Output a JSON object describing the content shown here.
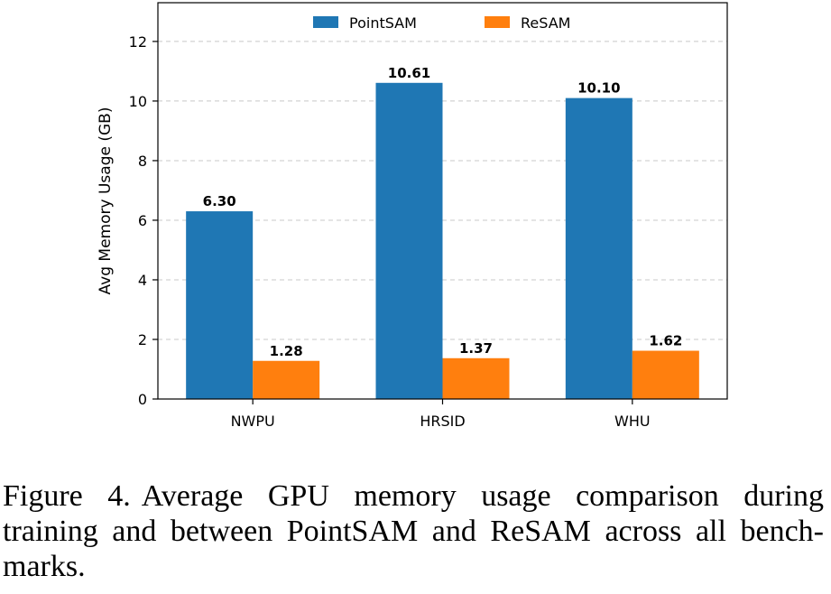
{
  "chart_data": {
    "type": "bar",
    "categories": [
      "NWPU",
      "HRSID",
      "WHU"
    ],
    "series": [
      {
        "name": "PointSAM",
        "values": [
          6.3,
          10.61,
          10.1
        ],
        "value_labels": [
          "6.30",
          "10.61",
          "10.10"
        ],
        "color": "#1f77b4"
      },
      {
        "name": "ReSAM",
        "values": [
          1.28,
          1.37,
          1.62
        ],
        "value_labels": [
          "1.28",
          "1.37",
          "1.62"
        ],
        "color": "#ff7f0e"
      }
    ],
    "ylabel": "Avg Memory Usage (GB)",
    "xlabel": "",
    "ylim": [
      0,
      13.3
    ],
    "yticks": [
      0,
      2,
      4,
      6,
      8,
      10,
      12
    ],
    "grid": "horizontal-dashed",
    "legend": "top-center"
  },
  "caption": {
    "figure_label": "Figure 4.",
    "text": "Average GPU memory usage comparison during training and between PointSAM and ReSAM across all bench-marks."
  }
}
